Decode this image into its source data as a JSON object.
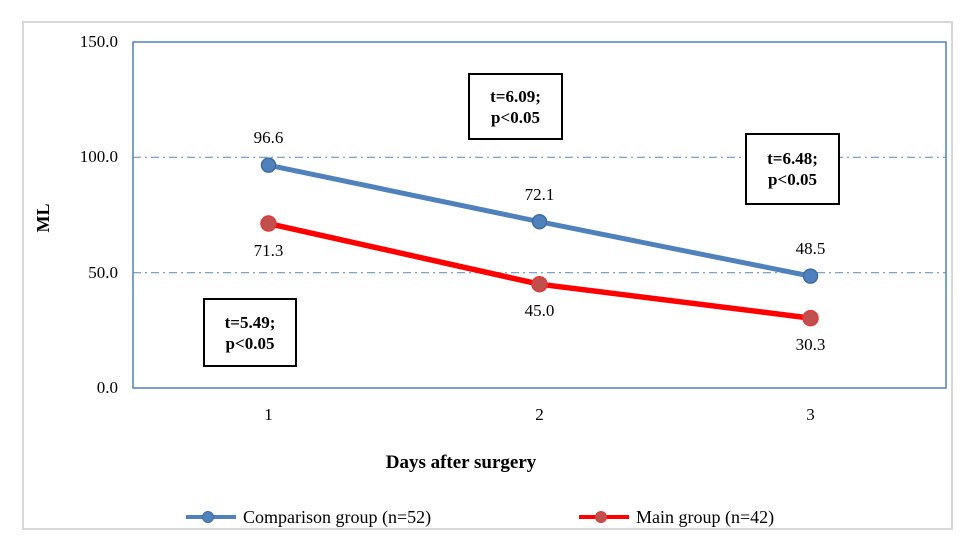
{
  "chart_data": {
    "type": "line",
    "categories": [
      "1",
      "2",
      "3"
    ],
    "xlabel": "Days after surgery",
    "ylabel": "ML",
    "ylim": [
      0,
      150
    ],
    "yticks": [
      {
        "value": 0,
        "label": "0.0"
      },
      {
        "value": 50,
        "label": "50.0"
      },
      {
        "value": 100,
        "label": "100.0"
      },
      {
        "value": 150,
        "label": "150.0"
      }
    ],
    "gridline_values": [
      50,
      100
    ],
    "grid_style": "dash-dot",
    "legend_position": "bottom",
    "series": [
      {
        "name": "Comparison group (n=52)",
        "values": [
          96.6,
          72.1,
          48.5
        ],
        "labels": [
          "96.6",
          "72.1",
          "48.5"
        ],
        "label_position": "above",
        "color": "#4F81BD",
        "marker_fill": "#4F81BD",
        "marker_edge": "#3E6CA3"
      },
      {
        "name": "Main group (n=42)",
        "values": [
          71.3,
          45.0,
          30.3
        ],
        "labels": [
          "71.3",
          "45.0",
          "30.3"
        ],
        "label_position": "below",
        "color": "#FF0000",
        "marker_fill": "#C0504D",
        "marker_edge": "#E03A3A"
      }
    ],
    "annotations": [
      {
        "line1": "t=5.49;",
        "line2": "p<0.05"
      },
      {
        "line1": "t=6.09;",
        "line2": "p<0.05"
      },
      {
        "line1": "t=6.48;",
        "line2": "p<0.05"
      }
    ],
    "colors": {
      "axis_border": "#4F81BD",
      "gridline": "#6E96C8",
      "frame_border": "#D8D8D8"
    }
  }
}
